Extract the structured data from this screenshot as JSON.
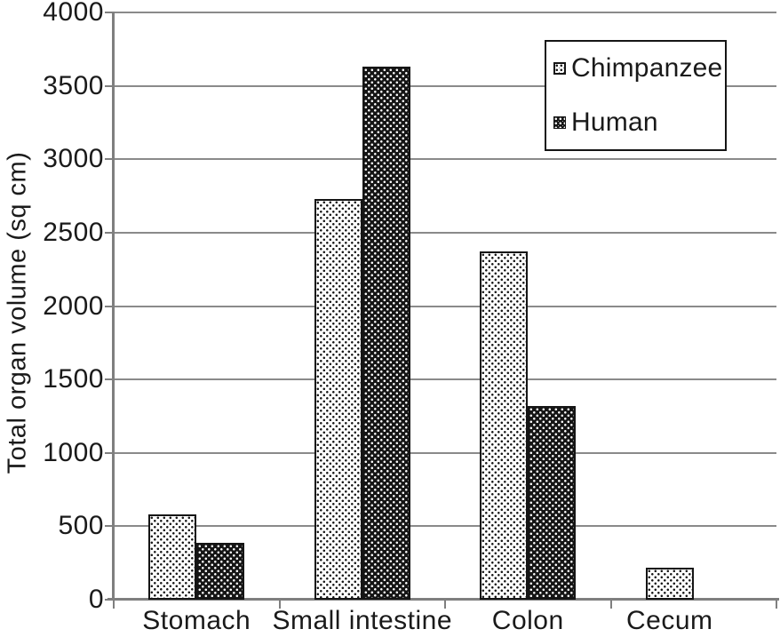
{
  "chart_data": {
    "type": "bar",
    "title": "",
    "categories": [
      "Stomach",
      "Small intestine",
      "Colon",
      "Cecum"
    ],
    "series": [
      {
        "name": "Chimpanzee",
        "pattern": "light-dotted",
        "values": [
          580,
          2730,
          2370,
          220
        ]
      },
      {
        "name": "Human",
        "pattern": "dark-dotted",
        "values": [
          385,
          3630,
          1320,
          0
        ]
      }
    ],
    "xlabel": "",
    "ylabel": "Total organ volume (sq cm)",
    "ylim": [
      0,
      4000
    ],
    "yticks": [
      0,
      500,
      1000,
      1500,
      2000,
      2500,
      3000,
      3500,
      4000
    ],
    "grid": true,
    "legend_position": "top-right"
  },
  "colors": {
    "bar_dark": "#151515",
    "bar_light_background": "#ffffff",
    "gridline": "#8a8a8a",
    "axis": "#7f7f7f",
    "text": "#1a1a1a",
    "background": "#ffffff"
  }
}
